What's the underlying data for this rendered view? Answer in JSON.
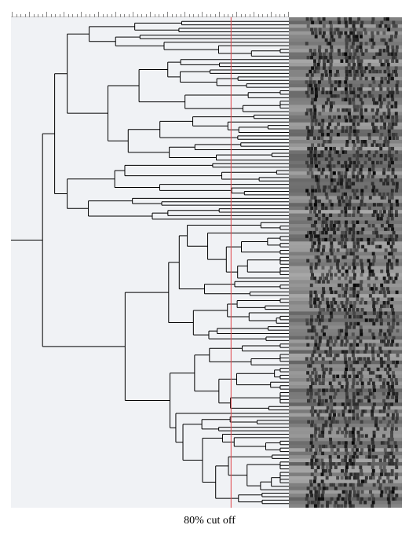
{
  "caption": "80% cut off",
  "cutoff": {
    "similarity_percent": 80,
    "color": "#e0474c"
  },
  "similarity_scale": {
    "min": 0,
    "max": 100,
    "major_ticks": 16,
    "minor_per_major": 4
  },
  "dendrogram": {
    "leaf_count": 140,
    "seed": 11,
    "line_color": "#000000",
    "background": "#f0f2f5"
  },
  "gel": {
    "lanes": 140,
    "band_positions": 24,
    "seed": 29,
    "background": "#7e7e7e"
  }
}
